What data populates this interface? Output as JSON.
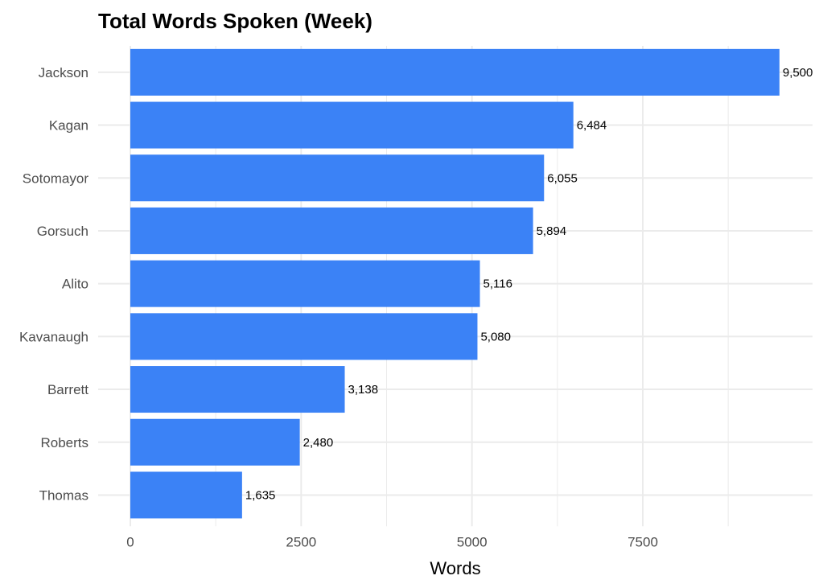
{
  "chart_data": {
    "type": "bar",
    "orientation": "horizontal",
    "title": "Total Words Spoken (Week)",
    "xlabel": "Words",
    "ylabel": "",
    "categories": [
      "Jackson",
      "Kagan",
      "Sotomayor",
      "Gorsuch",
      "Alito",
      "Kavanaugh",
      "Barrett",
      "Roberts",
      "Thomas"
    ],
    "values": [
      9500,
      6484,
      6055,
      5894,
      5116,
      5080,
      3138,
      2480,
      1635
    ],
    "value_labels": [
      "9,500",
      "6,484",
      "6,055",
      "5,894",
      "5,116",
      "5,080",
      "3,138",
      "2,480",
      "1,635"
    ],
    "xticks": [
      0,
      2500,
      5000,
      7500
    ],
    "xtick_labels": [
      "0",
      "2500",
      "5000",
      "7500"
    ],
    "xlim": [
      0,
      10000
    ],
    "grid": true,
    "bar_color": "#3B82F6",
    "grid_color": "#EBEBEB"
  }
}
